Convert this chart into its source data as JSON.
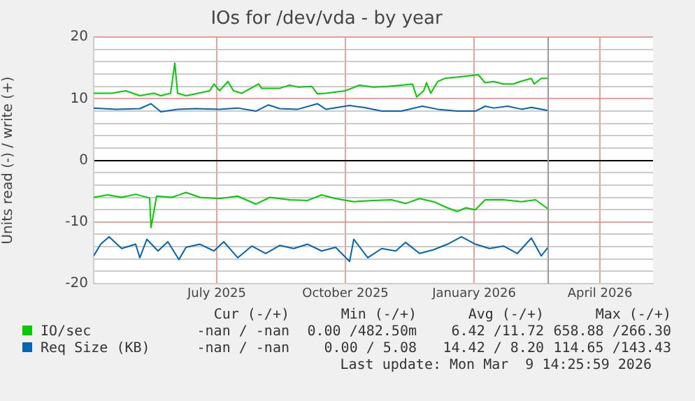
{
  "chart_data": {
    "type": "line",
    "title": "IOs for /dev/vda - by year",
    "ylabel": "Units read (-) / write (+)",
    "xlim": [
      "2025-04-18",
      "2026-05-23"
    ],
    "xticks": [
      {
        "value": "2025-07-15",
        "label": "July 2025"
      },
      {
        "value": "2025-10-15",
        "label": "October 2025"
      },
      {
        "value": "2026-01-15",
        "label": "January 2026"
      },
      {
        "value": "2026-04-15",
        "label": "April 2026"
      }
    ],
    "ylim": [
      -20,
      20
    ],
    "yticks": [
      -20,
      {
        "value": -18,
        "label": null
      },
      {
        "value": -16,
        "label": null
      },
      {
        "value": -14,
        "label": null
      },
      {
        "value": -12,
        "label": null
      },
      -10,
      {
        "value": -8,
        "label": null
      },
      {
        "value": -6,
        "label": null
      },
      {
        "value": -4,
        "label": null
      },
      {
        "value": -2,
        "label": null
      },
      0,
      {
        "value": 2,
        "label": null
      },
      {
        "value": 4,
        "label": null
      },
      {
        "value": 6,
        "label": null
      },
      {
        "value": 8,
        "label": null
      },
      10,
      {
        "value": 12,
        "label": null
      },
      {
        "value": 14,
        "label": null
      },
      {
        "value": 16,
        "label": null
      },
      {
        "value": 18,
        "label": null
      },
      20
    ],
    "grid": true,
    "legend": "bottom left",
    "marker": "none",
    "line_style": "solid",
    "ref_lines": [
      {
        "axis": "x",
        "value": "2026-03-09",
        "color": "#999999"
      }
    ],
    "series": [
      {
        "name": "IO/sec",
        "color": "#00cc00",
        "x": [
          "2025-04-18",
          "2025-05-01",
          "2025-05-11",
          "2025-05-21",
          "2025-05-31",
          "2025-06-05",
          "2025-06-12",
          "2025-06-15",
          "2025-06-17",
          "2025-06-23",
          "2025-06-30",
          "2025-07-10",
          "2025-07-13",
          "2025-07-17",
          "2025-07-23",
          "2025-07-27",
          "2025-08-02",
          "2025-08-14",
          "2025-08-16",
          "2025-08-29",
          "2025-09-05",
          "2025-09-11",
          "2025-09-21",
          "2025-09-25",
          "2025-10-01",
          "2025-10-15",
          "2025-10-25",
          "2025-11-04",
          "2025-11-14",
          "2025-11-24",
          "2025-12-02",
          "2025-12-05",
          "2025-12-10",
          "2025-12-12",
          "2025-12-15",
          "2025-12-20",
          "2025-12-25",
          "2026-01-06",
          "2026-01-18",
          "2026-01-23",
          "2026-01-29",
          "2026-02-05",
          "2026-02-12",
          "2026-02-17",
          "2026-02-25",
          "2026-02-27",
          "2026-03-04",
          "2026-03-09"
        ],
        "values": [
          10.9,
          10.9,
          11.3,
          10.5,
          10.9,
          10.5,
          10.9,
          15.8,
          10.9,
          10.5,
          10.8,
          11.3,
          12.4,
          11.3,
          12.8,
          11.3,
          10.9,
          12.4,
          11.7,
          11.7,
          12.2,
          11.9,
          12.0,
          10.8,
          10.9,
          11.3,
          12.2,
          11.9,
          12.0,
          12.2,
          12.4,
          10.3,
          11.3,
          12.6,
          10.9,
          12.8,
          13.3,
          13.6,
          13.9,
          12.6,
          12.8,
          12.4,
          12.4,
          12.8,
          13.3,
          12.4,
          13.3,
          13.3
        ]
      },
      {
        "color": "#00cc00",
        "x": [
          "2025-04-18",
          "2025-04-28",
          "2025-05-08",
          "2025-05-18",
          "2025-05-28",
          "2025-05-29",
          "2025-06-02",
          "2025-06-13",
          "2025-06-23",
          "2025-07-03",
          "2025-07-17",
          "2025-07-30",
          "2025-08-12",
          "2025-08-22",
          "2025-09-05",
          "2025-09-18",
          "2025-09-28",
          "2025-10-08",
          "2025-10-21",
          "2025-11-04",
          "2025-11-17",
          "2025-11-27",
          "2025-12-07",
          "2025-12-17",
          "2025-12-27",
          "2026-01-03",
          "2026-01-09",
          "2026-01-16",
          "2026-01-23",
          "2026-02-05",
          "2026-02-18",
          "2026-02-28",
          "2026-03-09"
        ],
        "values": [
          -6.0,
          -5.6,
          -6.0,
          -5.5,
          -6.1,
          -10.9,
          -5.8,
          -6.0,
          -5.2,
          -6.0,
          -6.2,
          -5.8,
          -7.1,
          -6.0,
          -6.4,
          -6.5,
          -5.6,
          -6.2,
          -6.7,
          -6.5,
          -6.4,
          -7.0,
          -6.2,
          -6.7,
          -7.7,
          -8.3,
          -7.7,
          -8.0,
          -6.4,
          -6.4,
          -6.7,
          -6.4,
          -7.9
        ]
      },
      {
        "name": "Req Size (KB)",
        "color": "#0066b3",
        "x": [
          "2025-04-18",
          "2025-05-04",
          "2025-05-21",
          "2025-05-29",
          "2025-06-05",
          "2025-06-17",
          "2025-06-30",
          "2025-07-17",
          "2025-07-30",
          "2025-08-12",
          "2025-08-21",
          "2025-08-29",
          "2025-09-11",
          "2025-09-25",
          "2025-10-01",
          "2025-10-18",
          "2025-10-28",
          "2025-11-10",
          "2025-11-24",
          "2025-12-09",
          "2025-12-20",
          "2026-01-03",
          "2026-01-16",
          "2026-01-23",
          "2026-01-29",
          "2026-02-08",
          "2026-02-18",
          "2026-02-25",
          "2026-03-09"
        ],
        "values": [
          8.5,
          8.3,
          8.4,
          9.2,
          7.9,
          8.3,
          8.4,
          8.3,
          8.5,
          8.0,
          9.0,
          8.4,
          8.3,
          9.2,
          8.3,
          8.9,
          8.6,
          8.0,
          8.0,
          8.8,
          8.3,
          8.0,
          8.0,
          8.8,
          8.5,
          8.8,
          8.3,
          8.6,
          8.1
        ]
      },
      {
        "color": "#0066b3",
        "x": [
          "2025-04-18",
          "2025-04-23",
          "2025-04-29",
          "2025-05-08",
          "2025-05-18",
          "2025-05-21",
          "2025-05-26",
          "2025-06-03",
          "2025-06-10",
          "2025-06-18",
          "2025-06-23",
          "2025-07-03",
          "2025-07-13",
          "2025-07-20",
          "2025-07-30",
          "2025-08-09",
          "2025-08-19",
          "2025-08-29",
          "2025-09-08",
          "2025-09-18",
          "2025-09-28",
          "2025-10-08",
          "2025-10-18",
          "2025-10-21",
          "2025-10-31",
          "2025-11-10",
          "2025-11-20",
          "2025-11-27",
          "2025-12-07",
          "2025-12-17",
          "2025-12-27",
          "2026-01-06",
          "2026-01-16",
          "2026-01-26",
          "2026-02-05",
          "2026-02-15",
          "2026-02-25",
          "2026-03-04",
          "2026-03-09"
        ],
        "values": [
          -15.5,
          -13.6,
          -12.4,
          -14.3,
          -13.6,
          -15.8,
          -12.8,
          -14.7,
          -13.2,
          -16.1,
          -14.1,
          -13.6,
          -14.7,
          -13.2,
          -15.8,
          -13.9,
          -15.1,
          -13.8,
          -14.3,
          -13.6,
          -14.7,
          -14.1,
          -16.4,
          -12.8,
          -15.8,
          -14.3,
          -14.7,
          -13.3,
          -15.1,
          -14.5,
          -13.6,
          -12.4,
          -13.6,
          -14.3,
          -13.9,
          -15.1,
          -12.6,
          -15.5,
          -14.1
        ]
      }
    ],
    "annotations": [
      "Cur (-/+)",
      "Min (-/+)",
      "Avg (-/+)",
      "Max (-/+)",
      "-nan / -nan",
      "0.00 /482.50m",
      "6.42 /11.72",
      "658.88 /266.30",
      "-nan / -nan",
      "0.00 / 5.08",
      "14.42 / 8.20",
      "114.65 /143.43",
      "Last update: Mon Mar  9 14:25:59 2026"
    ]
  }
}
